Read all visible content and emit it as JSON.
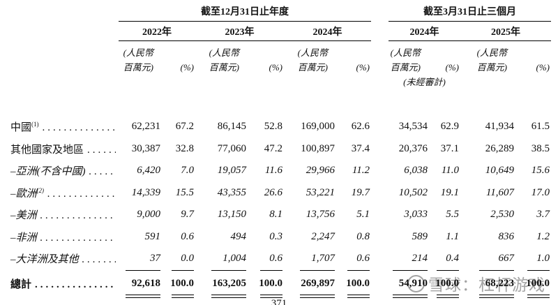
{
  "page": {
    "background": "#ffffff",
    "page_number": "371"
  },
  "table": {
    "groups": [
      {
        "title": "截至12月31日止年度"
      },
      {
        "title": "截至3月31日止三個月"
      }
    ],
    "years": [
      "2022年",
      "2023年",
      "2024年",
      "2024年",
      "2025年"
    ],
    "unit_line1": "(人民幣",
    "unit_line2": "百萬元)",
    "percent_label": "(%)",
    "unaudited_label": "(未經審計)",
    "rows": [
      {
        "label": "中國",
        "sup": "(1)",
        "values": [
          "62,231",
          "67.2",
          "86,145",
          "52.8",
          "169,000",
          "62.6",
          "34,534",
          "62.9",
          "41,934",
          "61.5"
        ]
      },
      {
        "label": "其他國家及地區",
        "sup": "",
        "values": [
          "30,387",
          "32.8",
          "77,060",
          "47.2",
          "100,897",
          "37.4",
          "20,376",
          "37.1",
          "26,289",
          "38.5"
        ]
      },
      {
        "label": "–亞洲(不含中國)",
        "sup": "",
        "values": [
          "6,420",
          "7.0",
          "19,057",
          "11.6",
          "29,966",
          "11.2",
          "6,038",
          "11.0",
          "10,649",
          "15.6"
        ]
      },
      {
        "label": "–歐洲",
        "sup": "(2)",
        "values": [
          "14,339",
          "15.5",
          "43,355",
          "26.6",
          "53,221",
          "19.7",
          "10,502",
          "19.1",
          "11,607",
          "17.0"
        ]
      },
      {
        "label": "–美洲",
        "sup": "",
        "values": [
          "9,000",
          "9.7",
          "13,150",
          "8.1",
          "13,756",
          "5.1",
          "3,033",
          "5.5",
          "2,530",
          "3.7"
        ]
      },
      {
        "label": "–非洲",
        "sup": "",
        "values": [
          "591",
          "0.6",
          "494",
          "0.3",
          "2,247",
          "0.8",
          "589",
          "1.1",
          "836",
          "1.2"
        ]
      },
      {
        "label": "–大洋洲及其他",
        "sup": "",
        "values": [
          "37",
          "0.0",
          "1,004",
          "0.6",
          "1,707",
          "0.6",
          "214",
          "0.4",
          "667",
          "1.0"
        ]
      }
    ],
    "total": {
      "label": "總計",
      "values": [
        "92,618",
        "100.0",
        "163,205",
        "100.0",
        "269,897",
        "100.0",
        "54,910",
        "100.0",
        "68,223",
        "100.0"
      ]
    }
  },
  "watermark": {
    "brand": "雪球",
    "colon": "：",
    "username": "杠杆游戏",
    "color": "#9b9b9b"
  }
}
